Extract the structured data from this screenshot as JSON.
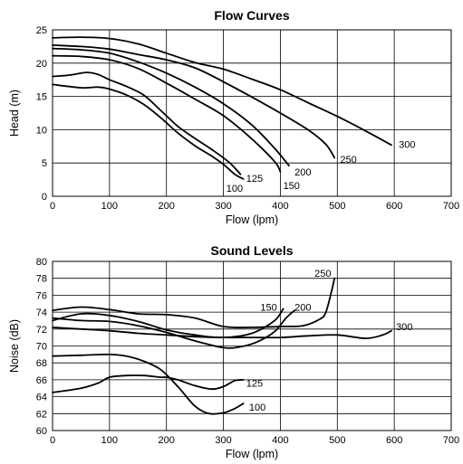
{
  "chart_data": [
    {
      "type": "line",
      "title": "Flow Curves",
      "xlabel": "Flow (lpm)",
      "ylabel": "Head (m)",
      "xlim": [
        0,
        700
      ],
      "ylim": [
        0,
        25
      ],
      "xticks": [
        0,
        100,
        200,
        300,
        400,
        500,
        600,
        700
      ],
      "yticks": [
        0,
        5,
        10,
        15,
        20,
        25
      ],
      "grid": true,
      "series": [
        {
          "name": "100",
          "label_at": [
            305,
            1.2
          ],
          "points": [
            [
              0,
              16.8
            ],
            [
              50,
              16.3
            ],
            [
              80,
              16.4
            ],
            [
              100,
              16.1
            ],
            [
              130,
              15.2
            ],
            [
              160,
              13.8
            ],
            [
              190,
              11.8
            ],
            [
              220,
              9.5
            ],
            [
              250,
              7.6
            ],
            [
              280,
              6.0
            ],
            [
              300,
              4.8
            ],
            [
              320,
              3.3
            ],
            [
              335,
              2.6
            ]
          ]
        },
        {
          "name": "125",
          "label_at": [
            340,
            2.7
          ],
          "points": [
            [
              0,
              18.0
            ],
            [
              30,
              18.2
            ],
            [
              60,
              18.6
            ],
            [
              80,
              18.3
            ],
            [
              100,
              17.5
            ],
            [
              130,
              16.5
            ],
            [
              160,
              15.2
            ],
            [
              190,
              12.9
            ],
            [
              220,
              10.5
            ],
            [
              250,
              8.7
            ],
            [
              280,
              7.0
            ],
            [
              310,
              5.1
            ],
            [
              330,
              3.3
            ]
          ]
        },
        {
          "name": "150",
          "label_at": [
            405,
            1.6
          ],
          "points": [
            [
              0,
              21.1
            ],
            [
              50,
              21.0
            ],
            [
              100,
              20.5
            ],
            [
              150,
              19.2
            ],
            [
              200,
              17.0
            ],
            [
              250,
              14.6
            ],
            [
              300,
              12.1
            ],
            [
              350,
              8.6
            ],
            [
              390,
              5.2
            ],
            [
              400,
              3.7
            ]
          ]
        },
        {
          "name": "200",
          "label_at": [
            425,
            3.7
          ],
          "points": [
            [
              0,
              22.2
            ],
            [
              50,
              22.0
            ],
            [
              100,
              21.5
            ],
            [
              150,
              20.2
            ],
            [
              200,
              18.5
            ],
            [
              250,
              16.4
            ],
            [
              300,
              13.9
            ],
            [
              350,
              10.7
            ],
            [
              390,
              7.2
            ],
            [
              415,
              4.6
            ]
          ]
        },
        {
          "name": "250",
          "label_at": [
            505,
            5.6
          ],
          "points": [
            [
              0,
              22.7
            ],
            [
              50,
              22.5
            ],
            [
              100,
              22.1
            ],
            [
              150,
              21.3
            ],
            [
              200,
              20.5
            ],
            [
              250,
              19.3
            ],
            [
              300,
              17.2
            ],
            [
              350,
              14.9
            ],
            [
              400,
              12.5
            ],
            [
              450,
              9.9
            ],
            [
              480,
              7.8
            ],
            [
              495,
              5.8
            ]
          ]
        },
        {
          "name": "300",
          "label_at": [
            608,
            7.8
          ],
          "points": [
            [
              0,
              23.8
            ],
            [
              50,
              23.9
            ],
            [
              100,
              23.7
            ],
            [
              150,
              22.9
            ],
            [
              200,
              21.5
            ],
            [
              250,
              20.1
            ],
            [
              300,
              19.1
            ],
            [
              350,
              17.6
            ],
            [
              400,
              16.0
            ],
            [
              450,
              14.0
            ],
            [
              500,
              12.0
            ],
            [
              550,
              9.8
            ],
            [
              595,
              7.7
            ]
          ]
        }
      ]
    },
    {
      "type": "line",
      "title": "Sound Levels",
      "xlabel": "Flow (lpm)",
      "ylabel": "Noise (dB)",
      "xlim": [
        0,
        700
      ],
      "ylim": [
        60,
        80
      ],
      "xticks": [
        0,
        100,
        200,
        300,
        400,
        500,
        600,
        700
      ],
      "yticks": [
        60,
        62,
        64,
        66,
        68,
        70,
        72,
        74,
        76,
        78,
        80
      ],
      "grid": true,
      "series": [
        {
          "name": "100",
          "label_at": [
            345,
            62.8
          ],
          "points": [
            [
              0,
              68.8
            ],
            [
              50,
              68.9
            ],
            [
              100,
              69.0
            ],
            [
              130,
              68.8
            ],
            [
              160,
              68.2
            ],
            [
              190,
              67.2
            ],
            [
              220,
              65.2
            ],
            [
              250,
              62.9
            ],
            [
              275,
              62.0
            ],
            [
              300,
              62.1
            ],
            [
              320,
              62.6
            ],
            [
              335,
              63.2
            ]
          ]
        },
        {
          "name": "125",
          "label_at": [
            340,
            65.6
          ],
          "points": [
            [
              0,
              64.5
            ],
            [
              50,
              65.0
            ],
            [
              80,
              65.6
            ],
            [
              100,
              66.3
            ],
            [
              130,
              66.5
            ],
            [
              160,
              66.5
            ],
            [
              190,
              66.3
            ],
            [
              200,
              66.3
            ],
            [
              220,
              66.0
            ],
            [
              250,
              65.3
            ],
            [
              280,
              64.9
            ],
            [
              300,
              65.2
            ],
            [
              320,
              65.9
            ],
            [
              335,
              66.0
            ]
          ]
        },
        {
          "name": "150",
          "label_at": [
            365,
            74.6
          ],
          "points": [
            [
              0,
              73.0
            ],
            [
              50,
              73.8
            ],
            [
              100,
              73.6
            ],
            [
              150,
              72.9
            ],
            [
              200,
              71.9
            ],
            [
              250,
              71.3
            ],
            [
              300,
              71.0
            ],
            [
              350,
              71.5
            ],
            [
              390,
              73.0
            ],
            [
              405,
              74.4
            ]
          ]
        },
        {
          "name": "200",
          "label_at": [
            425,
            74.6
          ],
          "points": [
            [
              0,
              73.3
            ],
            [
              50,
              73.0
            ],
            [
              100,
              72.9
            ],
            [
              150,
              72.4
            ],
            [
              200,
              71.6
            ],
            [
              250,
              70.6
            ],
            [
              300,
              69.8
            ],
            [
              330,
              69.9
            ],
            [
              360,
              70.5
            ],
            [
              390,
              71.7
            ],
            [
              410,
              73.3
            ],
            [
              425,
              74.2
            ]
          ]
        },
        {
          "name": "250",
          "label_at": [
            460,
            78.6
          ],
          "points": [
            [
              0,
              74.2
            ],
            [
              50,
              74.6
            ],
            [
              100,
              74.3
            ],
            [
              150,
              73.8
            ],
            [
              200,
              73.7
            ],
            [
              250,
              73.3
            ],
            [
              300,
              72.3
            ],
            [
              350,
              72.2
            ],
            [
              400,
              72.3
            ],
            [
              440,
              72.4
            ],
            [
              470,
              73.2
            ],
            [
              480,
              74.0
            ],
            [
              490,
              76.5
            ],
            [
              495,
              78.0
            ]
          ]
        },
        {
          "name": "300",
          "label_at": [
            603,
            72.3
          ],
          "points": [
            [
              0,
              72.2
            ],
            [
              50,
              72.0
            ],
            [
              100,
              71.8
            ],
            [
              150,
              71.5
            ],
            [
              200,
              71.3
            ],
            [
              250,
              71.1
            ],
            [
              300,
              71.0
            ],
            [
              350,
              71.0
            ],
            [
              400,
              71.0
            ],
            [
              450,
              71.2
            ],
            [
              500,
              71.3
            ],
            [
              550,
              70.9
            ],
            [
              580,
              71.3
            ],
            [
              595,
              71.8
            ]
          ]
        }
      ]
    }
  ]
}
